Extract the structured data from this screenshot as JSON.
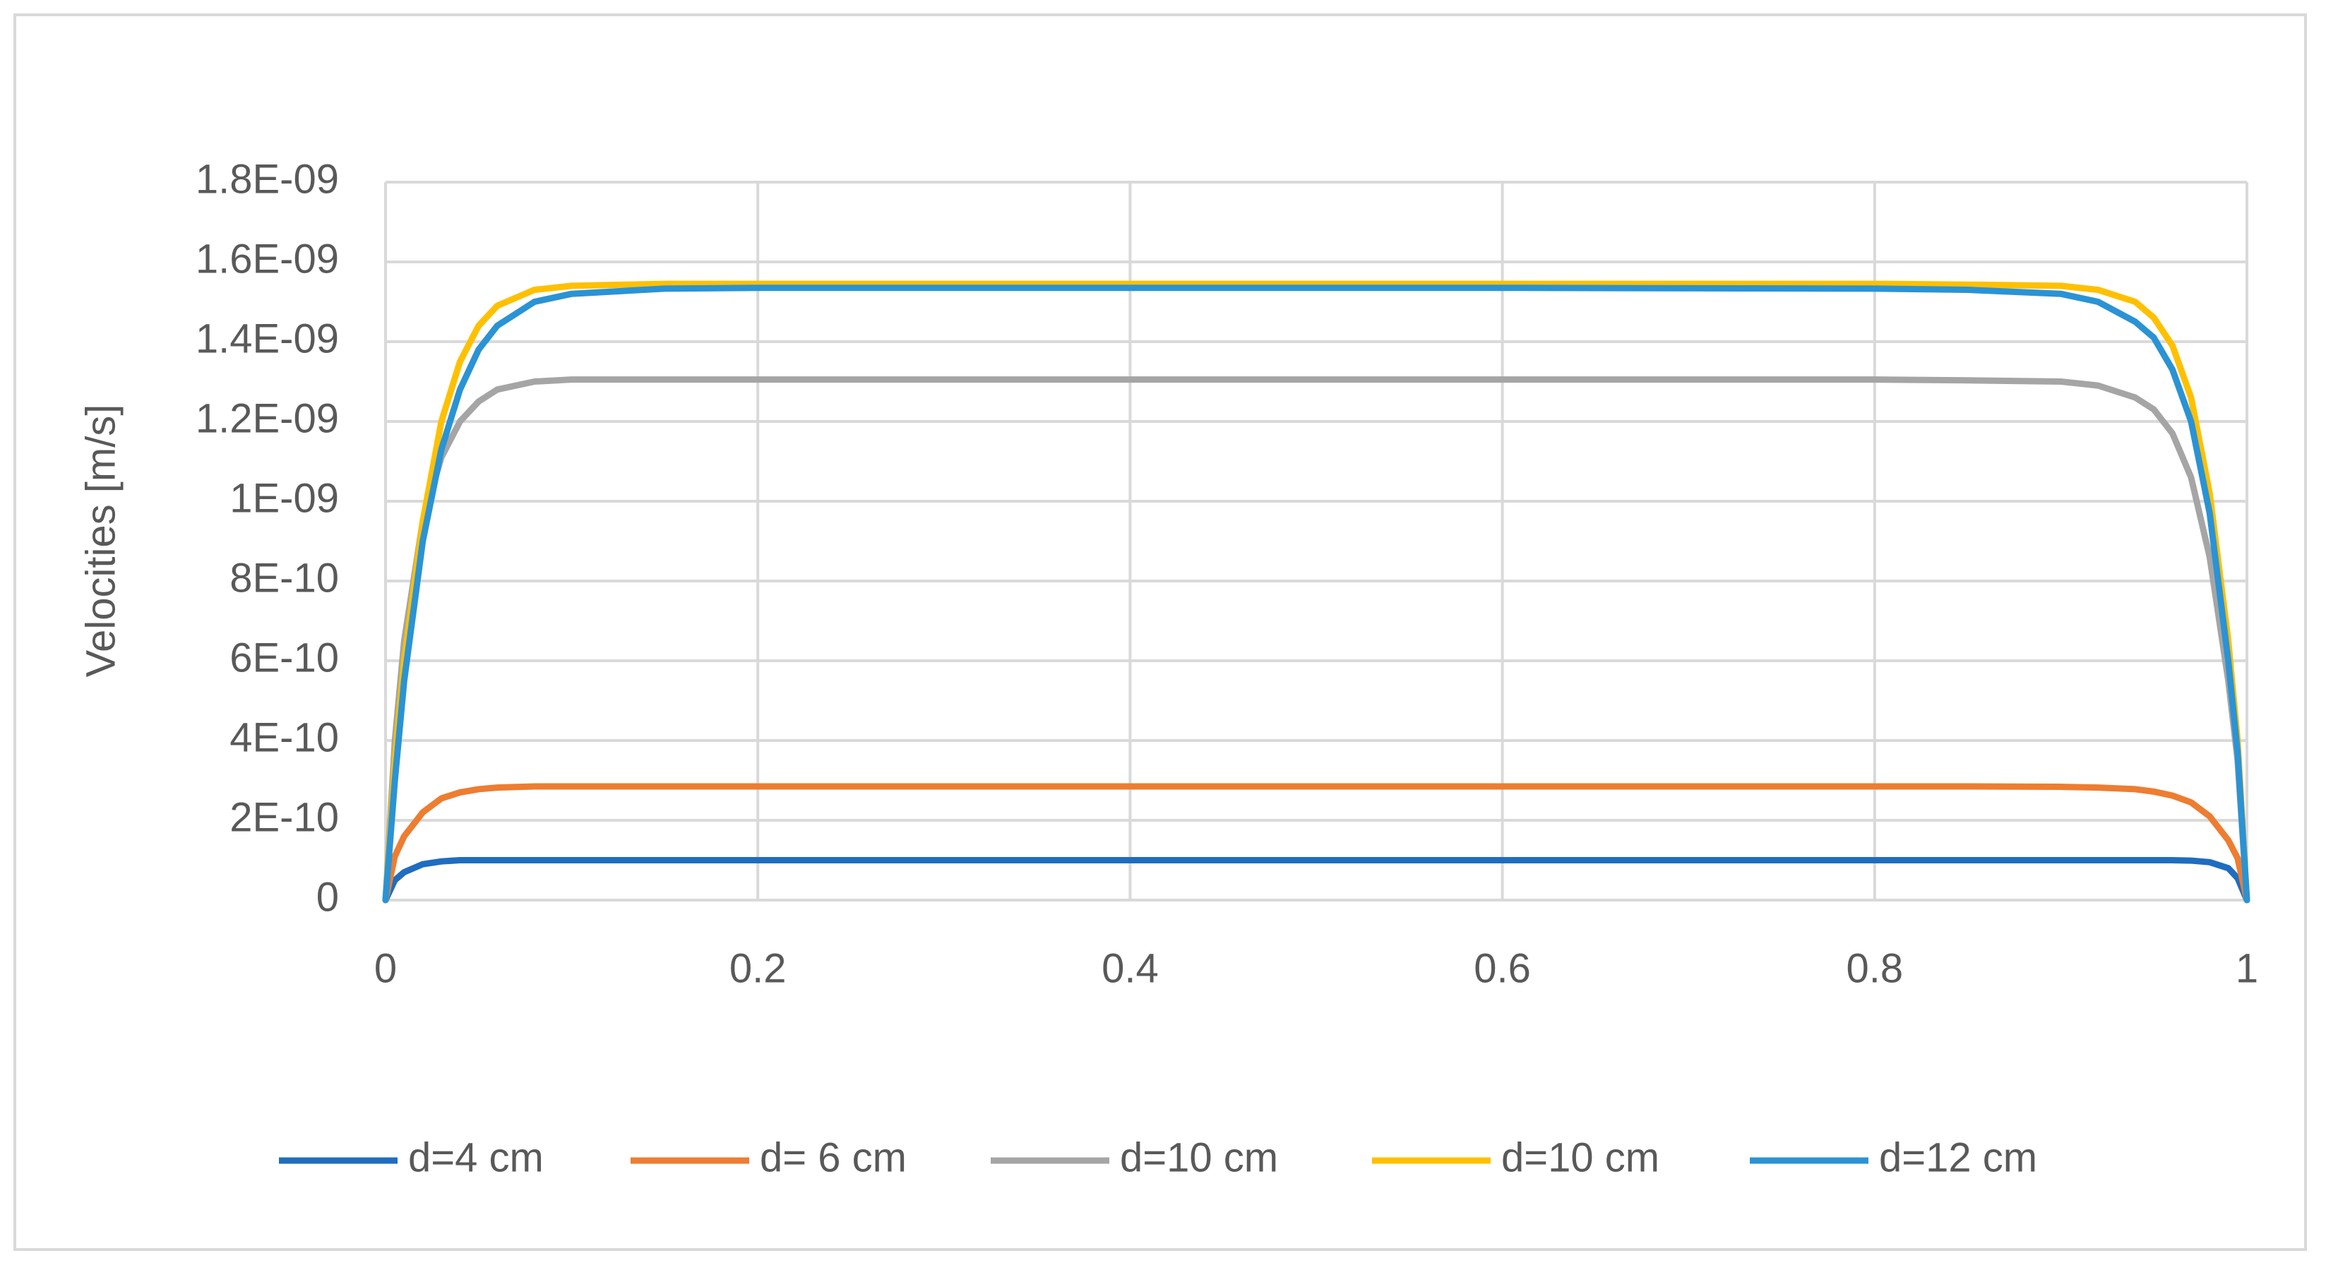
{
  "chart_data": {
    "type": "line",
    "y_label": "Velocities [m/s]",
    "x": [
      0,
      0.005,
      0.01,
      0.02,
      0.03,
      0.04,
      0.05,
      0.06,
      0.08,
      0.1,
      0.15,
      0.2,
      0.4,
      0.6,
      0.8,
      0.85,
      0.9,
      0.92,
      0.94,
      0.95,
      0.96,
      0.97,
      0.98,
      0.99,
      0.995,
      1
    ],
    "series": [
      {
        "name": "d=4 cm",
        "color": "#1f6dc0",
        "values": [
          0,
          5e-11,
          7e-11,
          9e-11,
          9.7e-11,
          1e-10,
          1e-10,
          1e-10,
          1e-10,
          1e-10,
          1e-10,
          1e-10,
          1e-10,
          1e-10,
          1e-10,
          1e-10,
          1e-10,
          1e-10,
          1e-10,
          1e-10,
          1e-10,
          9.9e-11,
          9.5e-11,
          8e-11,
          5.5e-11,
          0
        ]
      },
      {
        "name": "d= 6 cm",
        "color": "#ed7d31",
        "values": [
          0,
          1.1e-10,
          1.6e-10,
          2.2e-10,
          2.55e-10,
          2.7e-10,
          2.78e-10,
          2.82e-10,
          2.85e-10,
          2.85e-10,
          2.85e-10,
          2.85e-10,
          2.85e-10,
          2.85e-10,
          2.85e-10,
          2.85e-10,
          2.84e-10,
          2.82e-10,
          2.78e-10,
          2.72e-10,
          2.62e-10,
          2.45e-10,
          2.1e-10,
          1.5e-10,
          1.05e-10,
          0
        ]
      },
      {
        "name": "d=10 cm",
        "color": "#a5a5a5",
        "values": [
          0,
          4e-10,
          6.5e-10,
          9.5e-10,
          1.11e-09,
          1.2e-09,
          1.25e-09,
          1.28e-09,
          1.3e-09,
          1.305e-09,
          1.305e-09,
          1.305e-09,
          1.305e-09,
          1.305e-09,
          1.305e-09,
          1.303e-09,
          1.3e-09,
          1.29e-09,
          1.26e-09,
          1.23e-09,
          1.17e-09,
          1.06e-09,
          8.6e-10,
          5.5e-10,
          3.5e-10,
          0
        ]
      },
      {
        "name": "d=10 cm",
        "color": "#ffc000",
        "values": [
          0,
          3.5e-10,
          6e-10,
          9.5e-10,
          1.2e-09,
          1.35e-09,
          1.44e-09,
          1.49e-09,
          1.53e-09,
          1.54e-09,
          1.545e-09,
          1.545e-09,
          1.545e-09,
          1.545e-09,
          1.545e-09,
          1.543e-09,
          1.54e-09,
          1.53e-09,
          1.5e-09,
          1.46e-09,
          1.39e-09,
          1.26e-09,
          1.02e-09,
          6.5e-10,
          4e-10,
          0
        ]
      },
      {
        "name": "d=12 cm",
        "color": "#2a93d5",
        "values": [
          0,
          3e-10,
          5.5e-10,
          9e-10,
          1.13e-09,
          1.28e-09,
          1.38e-09,
          1.44e-09,
          1.5e-09,
          1.52e-09,
          1.533e-09,
          1.535e-09,
          1.535e-09,
          1.535e-09,
          1.533e-09,
          1.53e-09,
          1.52e-09,
          1.5e-09,
          1.45e-09,
          1.41e-09,
          1.33e-09,
          1.2e-09,
          9.7e-10,
          6e-10,
          3.7e-10,
          0
        ]
      }
    ],
    "xlim": [
      0,
      1
    ],
    "xticks": [
      0,
      0.2,
      0.4,
      0.6,
      0.8,
      1
    ],
    "ylim": [
      0,
      1.8e-09
    ],
    "yticks": [
      0,
      {
        "value": 2e-10,
        "label": "2E-10"
      },
      {
        "value": 4e-10,
        "label": "4E-10"
      },
      {
        "value": 6e-10,
        "label": "6E-10"
      },
      {
        "value": 8e-10,
        "label": "8E-10"
      },
      {
        "value": 1e-09,
        "label": "1E-09"
      },
      {
        "value": 1.2e-09,
        "label": "1.2E-09"
      },
      {
        "value": 1.4e-09,
        "label": "1.4E-09"
      },
      {
        "value": 1.6e-09,
        "label": "1.6E-09"
      },
      {
        "value": 1.8e-09,
        "label": "1.8E-09"
      }
    ],
    "grid": true,
    "legend": "bottom"
  }
}
